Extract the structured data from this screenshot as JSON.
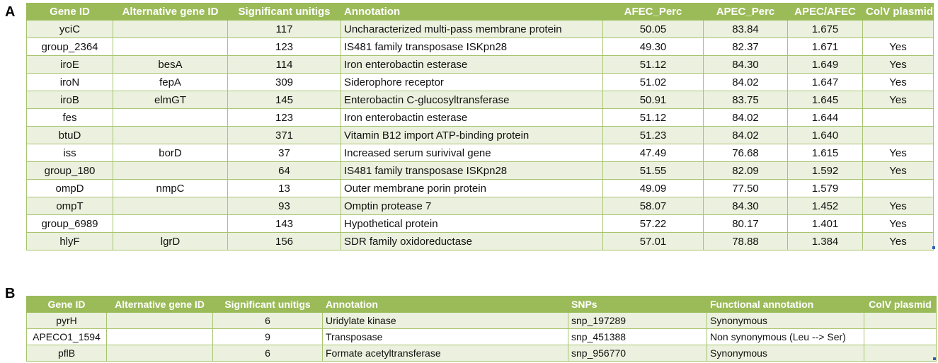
{
  "panel_a": {
    "label": "A",
    "headers": [
      "Gene ID",
      "Alternative gene ID",
      "Significant unitigs",
      "Annotation",
      "AFEC_Perc",
      "APEC_Perc",
      "APEC/AFEC",
      "ColV plasmid"
    ],
    "rows": [
      [
        "yciC",
        "",
        "117",
        "Uncharacterized multi-pass membrane protein",
        "50.05",
        "83.84",
        "1.675",
        ""
      ],
      [
        "group_2364",
        "",
        "123",
        "IS481 family transposase ISKpn28",
        "49.30",
        "82.37",
        "1.671",
        "Yes"
      ],
      [
        "iroE",
        "besA",
        "114",
        "Iron enterobactin esterase",
        "51.12",
        "84.30",
        "1.649",
        "Yes"
      ],
      [
        "iroN",
        "fepA",
        "309",
        "Siderophore receptor",
        "51.02",
        "84.02",
        "1.647",
        "Yes"
      ],
      [
        "iroB",
        "elmGT",
        "145",
        "Enterobactin C-glucosyltransferase",
        "50.91",
        "83.75",
        "1.645",
        "Yes"
      ],
      [
        "fes",
        "",
        "123",
        "Iron enterobactin esterase",
        "51.12",
        "84.02",
        "1.644",
        ""
      ],
      [
        "btuD",
        "",
        "371",
        "Vitamin B12 import ATP-binding protein",
        "51.23",
        "84.02",
        "1.640",
        ""
      ],
      [
        "iss",
        "borD",
        "37",
        "Increased serum surivival gene",
        "47.49",
        "76.68",
        "1.615",
        "Yes"
      ],
      [
        "group_180",
        "",
        "64",
        "IS481 family transposase ISKpn28",
        "51.55",
        "82.09",
        "1.592",
        "Yes"
      ],
      [
        "ompD",
        "nmpC",
        "13",
        "Outer membrane porin protein",
        "49.09",
        "77.50",
        "1.579",
        ""
      ],
      [
        "ompT",
        "",
        "93",
        "Omptin protease 7",
        "58.07",
        "84.30",
        "1.452",
        "Yes"
      ],
      [
        "group_6989",
        "",
        "143",
        "Hypothetical protein",
        "57.22",
        "80.17",
        "1.401",
        "Yes"
      ],
      [
        "hlyF",
        "lgrD",
        "156",
        "SDR family oxidoreductase",
        "57.01",
        "78.88",
        "1.384",
        "Yes"
      ]
    ]
  },
  "panel_b": {
    "label": "B",
    "headers": [
      "Gene ID",
      "Alternative gene ID",
      "Significant unitigs",
      "Annotation",
      "SNPs",
      "Functional annotation",
      "ColV plasmid"
    ],
    "rows": [
      [
        "pyrH",
        "",
        "6",
        "Uridylate kinase",
        "snp_197289",
        "Synonymous",
        ""
      ],
      [
        "APECO1_1594",
        "",
        "9",
        "Transposase",
        "snp_451388",
        "Non synonymous (Leu --> Ser)",
        ""
      ],
      [
        "pflB",
        "",
        "6",
        "Formate acetyltransferase",
        "snp_956770",
        "Synonymous",
        ""
      ]
    ]
  },
  "colors": {
    "header": "#9bbb59",
    "band": "#ebf1de",
    "border": "#a8c470",
    "corner_marker": "#2b5fb4"
  }
}
